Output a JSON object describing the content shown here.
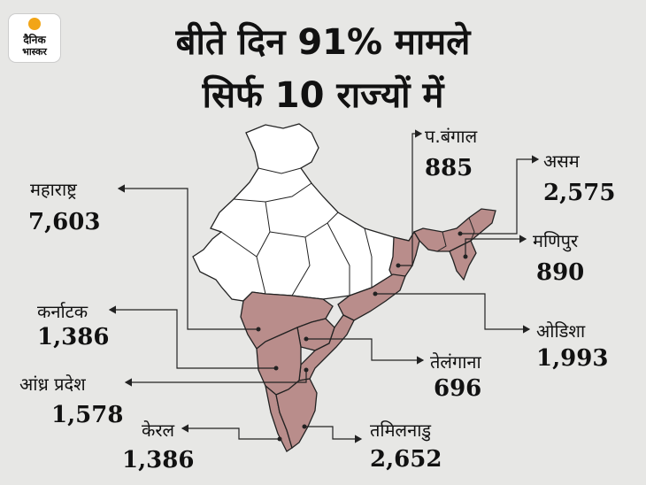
{
  "brand": {
    "line1": "दैनिक",
    "line2": "भास्कर"
  },
  "headline": {
    "line1": "बीते दिन 91% मामले",
    "line2": "सिर्फ 10 राज्यों में"
  },
  "colors": {
    "highlight": "#b98d8b",
    "border": "#222222",
    "background": "#e7e7e5"
  },
  "states": [
    {
      "name": "प.बंगाल",
      "value": "885"
    },
    {
      "name": "असम",
      "value": "2,575"
    },
    {
      "name": "महाराष्ट्र",
      "value": "7,603"
    },
    {
      "name": "मणिपुर",
      "value": "890"
    },
    {
      "name": "कर्नाटक",
      "value": "1,386"
    },
    {
      "name": "ओडिशा",
      "value": "1,993"
    },
    {
      "name": "तेलंगाना",
      "value": "696"
    },
    {
      "name": "आंध्र प्रदेश",
      "value": "1,578"
    },
    {
      "name": "केरल",
      "value": "1,386"
    },
    {
      "name": "तमिलनाडु",
      "value": "2,652"
    }
  ]
}
